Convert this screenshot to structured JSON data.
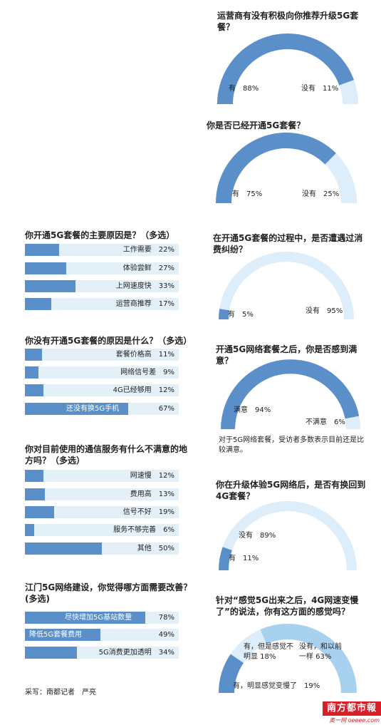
{
  "colors": {
    "accent": "#5b8fc9",
    "track": "#e4f0f8",
    "gauge_track": "#ddeefa",
    "gauge_light": "#a8d1ef"
  },
  "chart_data": [
    {
      "type": "pie",
      "title": "运营商有没有积极向你推荐升级5G套餐？",
      "labels": [
        "有",
        "没有"
      ],
      "values": [
        88,
        11
      ],
      "display": [
        "有　88%",
        "没有　11%"
      ]
    },
    {
      "type": "pie",
      "title": "你是否已经开通5G套餐？",
      "labels": [
        "有",
        "没有"
      ],
      "values": [
        75,
        25
      ],
      "display": [
        "有　75%",
        "没有　25%"
      ]
    },
    {
      "type": "pie",
      "title": "在开通5G套餐的过程中，是否遭遇过消费纠纷？",
      "labels": [
        "有",
        "没有"
      ],
      "values": [
        5,
        95
      ],
      "display": [
        "有　5%",
        "没有　95%"
      ]
    },
    {
      "type": "pie",
      "title": "开通5G网络套餐之后，你是否感到满意？",
      "labels": [
        "满意",
        "不满意"
      ],
      "values": [
        94,
        6
      ],
      "display": [
        "满意　94%",
        "不满意　6%"
      ],
      "note": "对于5G网络套餐，受访者多数表示目前还是比较满意。"
    },
    {
      "type": "pie",
      "title": "你在升级体验5G网络后，是否有换回到4G套餐？",
      "labels": [
        "没有",
        "有"
      ],
      "values": [
        89,
        11
      ],
      "display": [
        "没有　89%",
        "有　11%"
      ]
    },
    {
      "type": "pie",
      "title": "针对“感觉5G出来之后，4G网速变慢了”的说法，你有这方面的感觉吗？",
      "labels": [
        "有，明显感觉变慢了",
        "有，但是感觉不明显",
        "没有，和以前一样"
      ],
      "values": [
        19,
        18,
        63
      ],
      "display": [
        "有，明显感觉变慢了　19%",
        "有，但是感觉不明显 18%",
        "没有，和以前一样 63%"
      ]
    },
    {
      "type": "bar",
      "title": "你开通5G套餐的主要原因是？（多选）",
      "categories": [
        "工作需要",
        "体验尝鲜",
        "上网速度快",
        "运营商推荐"
      ],
      "values": [
        22,
        27,
        33,
        17
      ],
      "display": [
        "工作需要　22%",
        "体验尝鲜　27%",
        "上网速度快　33%",
        "运营商推荐　17%"
      ]
    },
    {
      "type": "bar",
      "title": "你没有开通5G套餐的原因是什么？（多选）",
      "categories": [
        "套餐价格高",
        "网络信号差",
        "4G已经够用",
        "还没有换5G手机"
      ],
      "values": [
        11,
        9,
        12,
        67
      ],
      "display": [
        "套餐价格高　11%",
        "网络信号差　9%",
        "4G已经够用　12%",
        "还没有换5G手机",
        "67%"
      ]
    },
    {
      "type": "bar",
      "title": "你对目前使用的通信服务有什么不满意的地方吗？（多选）",
      "categories": [
        "网速慢",
        "费用高",
        "信号不好",
        "服务不够完善",
        "其他"
      ],
      "values": [
        12,
        13,
        19,
        6,
        50
      ],
      "display": [
        "网速慢　12%",
        "费用高　13%",
        "信号不好　19%",
        "服务不够完善　6%",
        "其他　50%"
      ]
    },
    {
      "type": "bar",
      "title": "江门5G网络建设，你觉得哪方面需要改善？(多选)",
      "categories": [
        "尽快增加5G基站数量",
        "降低5G套餐费用",
        "5G消费更加透明"
      ],
      "values": [
        78,
        49,
        34
      ],
      "display": [
        "尽快增加5G基站数量",
        "78%",
        "降低5G套餐费用",
        "49%",
        "5G消费更加透明　34%"
      ]
    }
  ],
  "credit": "采写：南都记者　严亮",
  "logo": {
    "line1": "南方都市報",
    "line2": "奥一网 oeeee.com"
  }
}
